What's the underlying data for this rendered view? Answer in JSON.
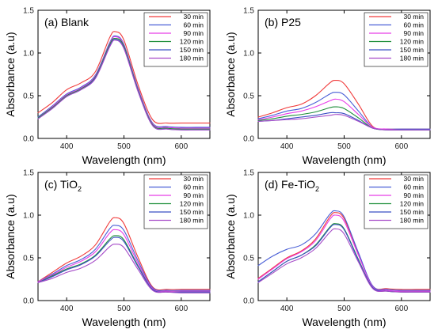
{
  "chart_data": [
    {
      "type": "line",
      "panel_label": "(a) Blank",
      "label_parts": {
        "prefix": "(a) Blank",
        "main": "",
        "sub": ""
      },
      "xlabel": "Wavelength (nm)",
      "ylabel": "Absorbance (a.u)",
      "xlim": [
        350,
        650
      ],
      "ylim": [
        0.0,
        1.5
      ],
      "xticks": [
        400,
        500,
        600
      ],
      "yticks": [
        0.0,
        0.5,
        1.0,
        1.5
      ],
      "legend_position": "top-right",
      "x": [
        350,
        375,
        400,
        425,
        450,
        475,
        485,
        500,
        525,
        550,
        575,
        600,
        625,
        650
      ],
      "series": [
        {
          "name": "30 min",
          "color": "#f03a3a",
          "values": [
            0.3,
            0.42,
            0.57,
            0.65,
            0.78,
            1.18,
            1.25,
            1.15,
            0.62,
            0.22,
            0.18,
            0.18,
            0.18,
            0.18
          ]
        },
        {
          "name": "60 min",
          "color": "#4a5fd6",
          "values": [
            0.25,
            0.38,
            0.52,
            0.6,
            0.74,
            1.12,
            1.2,
            1.1,
            0.58,
            0.18,
            0.14,
            0.13,
            0.13,
            0.13
          ]
        },
        {
          "name": "90 min",
          "color": "#e83ee8",
          "values": [
            0.24,
            0.37,
            0.51,
            0.59,
            0.73,
            1.11,
            1.19,
            1.09,
            0.57,
            0.17,
            0.13,
            0.12,
            0.12,
            0.12
          ]
        },
        {
          "name": "120 min",
          "color": "#1f8f3a",
          "values": [
            0.24,
            0.36,
            0.5,
            0.58,
            0.72,
            1.1,
            1.17,
            1.08,
            0.56,
            0.16,
            0.12,
            0.11,
            0.11,
            0.11
          ]
        },
        {
          "name": "150 min",
          "color": "#3b4fc4",
          "values": [
            0.23,
            0.35,
            0.49,
            0.57,
            0.71,
            1.08,
            1.16,
            1.06,
            0.55,
            0.15,
            0.11,
            0.1,
            0.1,
            0.1
          ]
        },
        {
          "name": "180 min",
          "color": "#a64bc8",
          "values": [
            0.23,
            0.35,
            0.49,
            0.57,
            0.7,
            1.07,
            1.15,
            1.05,
            0.54,
            0.15,
            0.11,
            0.1,
            0.1,
            0.1
          ]
        }
      ]
    },
    {
      "type": "line",
      "panel_label": "(b) P25",
      "label_parts": {
        "prefix": "(b) P25",
        "main": "",
        "sub": ""
      },
      "xlabel": "Wavelength (nm)",
      "ylabel": "Absorbance (a.u)",
      "xlim": [
        350,
        650
      ],
      "ylim": [
        0.0,
        1.5
      ],
      "xticks": [
        400,
        500,
        600
      ],
      "yticks": [
        0.0,
        0.5,
        1.0,
        1.5
      ],
      "legend_position": "top-right",
      "x": [
        350,
        375,
        400,
        425,
        450,
        475,
        485,
        500,
        525,
        550,
        575,
        600,
        625,
        650
      ],
      "series": [
        {
          "name": "30 min",
          "color": "#f03a3a",
          "values": [
            0.25,
            0.3,
            0.36,
            0.4,
            0.5,
            0.65,
            0.68,
            0.64,
            0.4,
            0.14,
            0.11,
            0.11,
            0.11,
            0.11
          ]
        },
        {
          "name": "60 min",
          "color": "#4a5fd6",
          "values": [
            0.23,
            0.27,
            0.32,
            0.35,
            0.42,
            0.52,
            0.54,
            0.51,
            0.32,
            0.13,
            0.11,
            0.11,
            0.11,
            0.11
          ]
        },
        {
          "name": "90 min",
          "color": "#e83ee8",
          "values": [
            0.22,
            0.25,
            0.29,
            0.32,
            0.37,
            0.44,
            0.46,
            0.43,
            0.28,
            0.13,
            0.11,
            0.1,
            0.1,
            0.1
          ]
        },
        {
          "name": "120 min",
          "color": "#1f8f3a",
          "values": [
            0.21,
            0.23,
            0.26,
            0.28,
            0.31,
            0.36,
            0.37,
            0.35,
            0.24,
            0.12,
            0.1,
            0.1,
            0.1,
            0.1
          ]
        },
        {
          "name": "150 min",
          "color": "#3b4fc4",
          "values": [
            0.2,
            0.21,
            0.23,
            0.25,
            0.27,
            0.3,
            0.3,
            0.29,
            0.21,
            0.12,
            0.1,
            0.1,
            0.1,
            0.1
          ]
        },
        {
          "name": "180 min",
          "color": "#a64bc8",
          "values": [
            0.2,
            0.21,
            0.22,
            0.23,
            0.25,
            0.27,
            0.28,
            0.27,
            0.2,
            0.12,
            0.1,
            0.1,
            0.1,
            0.1
          ]
        }
      ]
    },
    {
      "type": "line",
      "panel_label": "(c) TiO2",
      "label_parts": {
        "prefix": "(c) ",
        "main": "TiO",
        "sub": "2"
      },
      "xlabel": "Wavelength (nm)",
      "ylabel": "Absorbance (a.u)",
      "xlim": [
        350,
        650
      ],
      "ylim": [
        0.0,
        1.5
      ],
      "xticks": [
        400,
        500,
        600
      ],
      "yticks": [
        0.0,
        0.5,
        1.0,
        1.5
      ],
      "legend_position": "top-right",
      "x": [
        350,
        375,
        400,
        425,
        450,
        475,
        485,
        500,
        525,
        550,
        575,
        600,
        625,
        650
      ],
      "series": [
        {
          "name": "30 min",
          "color": "#f03a3a",
          "values": [
            0.22,
            0.33,
            0.44,
            0.52,
            0.65,
            0.92,
            0.97,
            0.9,
            0.5,
            0.16,
            0.13,
            0.13,
            0.13,
            0.13
          ]
        },
        {
          "name": "60 min",
          "color": "#4a5fd6",
          "values": [
            0.22,
            0.31,
            0.41,
            0.48,
            0.6,
            0.84,
            0.88,
            0.82,
            0.46,
            0.15,
            0.12,
            0.12,
            0.12,
            0.12
          ]
        },
        {
          "name": "90 min",
          "color": "#e83ee8",
          "values": [
            0.22,
            0.3,
            0.39,
            0.46,
            0.57,
            0.79,
            0.83,
            0.77,
            0.43,
            0.14,
            0.11,
            0.11,
            0.11,
            0.11
          ]
        },
        {
          "name": "120 min",
          "color": "#1f8f3a",
          "values": [
            0.21,
            0.29,
            0.37,
            0.43,
            0.53,
            0.72,
            0.76,
            0.71,
            0.4,
            0.13,
            0.1,
            0.1,
            0.1,
            0.1
          ]
        },
        {
          "name": "150 min",
          "color": "#3b4fc4",
          "values": [
            0.21,
            0.28,
            0.36,
            0.42,
            0.52,
            0.7,
            0.74,
            0.69,
            0.39,
            0.13,
            0.1,
            0.1,
            0.1,
            0.1
          ]
        },
        {
          "name": "180 min",
          "color": "#a64bc8",
          "values": [
            0.21,
            0.26,
            0.33,
            0.38,
            0.47,
            0.63,
            0.66,
            0.62,
            0.36,
            0.12,
            0.1,
            0.09,
            0.09,
            0.09
          ]
        }
      ]
    },
    {
      "type": "line",
      "panel_label": "(d) Fe-TiO2",
      "label_parts": {
        "prefix": "(d) ",
        "main": "Fe-TiO",
        "sub": "2"
      },
      "xlabel": "Wavelength (nm)",
      "ylabel": "Absorbance (a.u)",
      "xlim": [
        350,
        650
      ],
      "ylim": [
        0.0,
        1.5
      ],
      "xticks": [
        400,
        500,
        600
      ],
      "yticks": [
        0.0,
        0.5,
        1.0,
        1.5
      ],
      "legend_position": "top-right",
      "x": [
        350,
        375,
        400,
        425,
        450,
        475,
        485,
        500,
        525,
        550,
        575,
        600,
        625,
        650
      ],
      "series": [
        {
          "name": "30 min",
          "color": "#f03a3a",
          "values": [
            0.26,
            0.38,
            0.5,
            0.58,
            0.72,
            0.98,
            1.03,
            0.96,
            0.55,
            0.17,
            0.14,
            0.13,
            0.13,
            0.13
          ]
        },
        {
          "name": "60 min",
          "color": "#4a5fd6",
          "values": [
            0.41,
            0.52,
            0.6,
            0.65,
            0.78,
            1.01,
            1.05,
            0.98,
            0.56,
            0.17,
            0.13,
            0.12,
            0.12,
            0.12
          ]
        },
        {
          "name": "90 min",
          "color": "#e83ee8",
          "values": [
            0.25,
            0.37,
            0.49,
            0.57,
            0.7,
            0.95,
            1.0,
            0.93,
            0.53,
            0.16,
            0.12,
            0.11,
            0.11,
            0.11
          ]
        },
        {
          "name": "120 min",
          "color": "#1f8f3a",
          "values": [
            0.22,
            0.34,
            0.46,
            0.53,
            0.65,
            0.86,
            0.9,
            0.84,
            0.48,
            0.15,
            0.11,
            0.1,
            0.1,
            0.1
          ]
        },
        {
          "name": "150 min",
          "color": "#3b4fc4",
          "values": [
            0.22,
            0.34,
            0.46,
            0.53,
            0.64,
            0.85,
            0.89,
            0.83,
            0.47,
            0.15,
            0.11,
            0.1,
            0.1,
            0.1
          ]
        },
        {
          "name": "180 min",
          "color": "#a64bc8",
          "values": [
            0.21,
            0.32,
            0.43,
            0.5,
            0.61,
            0.8,
            0.84,
            0.78,
            0.45,
            0.14,
            0.11,
            0.1,
            0.1,
            0.1
          ]
        }
      ]
    }
  ]
}
